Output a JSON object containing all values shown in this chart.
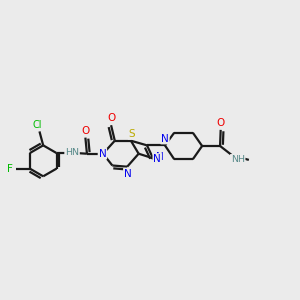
{
  "background_color": "#ebebeb",
  "bond_color": "#1a1a1a",
  "bond_width": 1.6,
  "atom_colors": {
    "F": "#00bb00",
    "Cl": "#00bb00",
    "N": "#0000ee",
    "O": "#ee0000",
    "S": "#bbaa00",
    "NH_color": "#558888",
    "C": "#1a1a1a"
  },
  "fontsize": 7.5,
  "figsize": [
    3.0,
    3.0
  ],
  "dpi": 100
}
